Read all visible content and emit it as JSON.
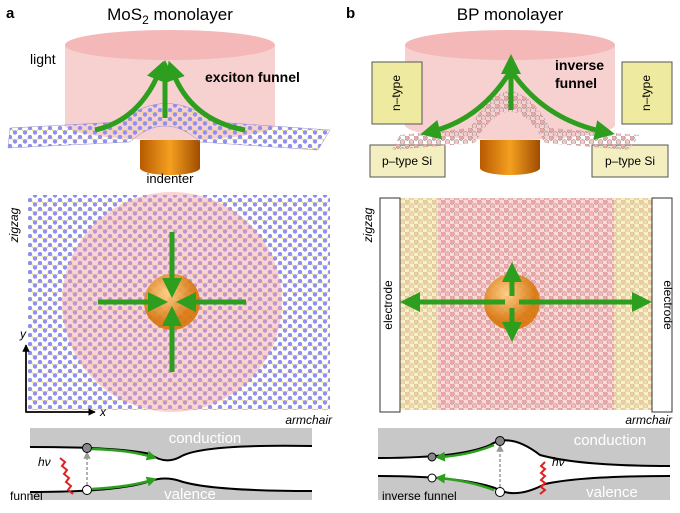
{
  "panel_a": {
    "label": "a",
    "title": {
      "main": "MoS",
      "sub": "2",
      "rest": " monolayer"
    },
    "top": {
      "light": "light",
      "funnel": "exciton funnel",
      "indenter": "indenter"
    },
    "lattice": {
      "zigzag": "zigzag",
      "armchair": "armchair",
      "y_axis": "y",
      "x_axis": "x"
    },
    "band": {
      "photon": "hν",
      "conduction": "conduction",
      "valence": "valence",
      "funnel": "funnel"
    }
  },
  "panel_b": {
    "label": "b",
    "title": "BP monolayer",
    "top": {
      "funnel_line1": "inverse",
      "funnel_line2": "funnel",
      "n_type_left": "n–type",
      "n_type_right": "n–type",
      "p_type_left": "p–type Si",
      "p_type_right": "p–type Si"
    },
    "lattice": {
      "zigzag": "zigzag",
      "armchair": "armchair",
      "electrode_left": "electrode",
      "electrode_right": "electrode"
    },
    "band": {
      "photon": "hν",
      "conduction": "conduction",
      "valence": "valence",
      "funnel": "inverse funnel"
    }
  }
}
